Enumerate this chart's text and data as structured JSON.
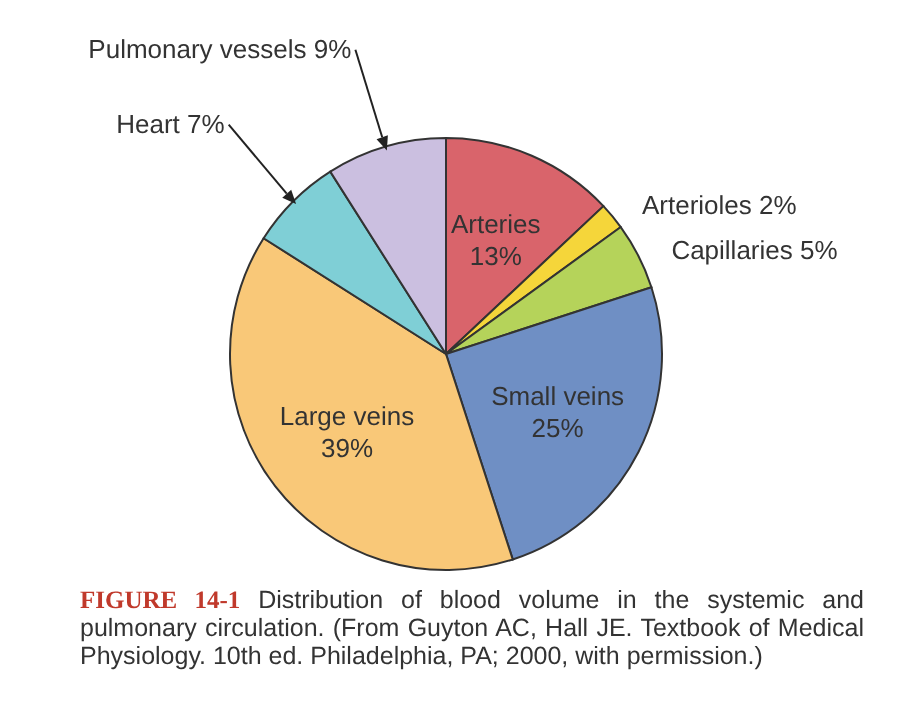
{
  "chart_data": {
    "type": "pie",
    "title": "FIGURE 14-1",
    "categories": [
      "Arteries",
      "Arterioles",
      "Capillaries",
      "Small veins",
      "Large veins",
      "Heart",
      "Pulmonary vessels"
    ],
    "values": [
      13,
      2,
      5,
      25,
      39,
      7,
      9
    ],
    "value_labels": [
      "13%",
      "2%",
      "5%",
      "25%",
      "39%",
      "7%",
      "9%"
    ],
    "colors": [
      "#d9646b",
      "#f5d63a",
      "#b5d35a",
      "#6f8fc4",
      "#f9c878",
      "#7fcfd6",
      "#cbbfe0"
    ],
    "annotations": [
      "Distribution of blood volume in the systemic and pulmonary circulation. (From Guyton AC, Hall JE. Textbook of Medical Physiology. 10th ed. Philadelphia, PA; 2000, with permission.)"
    ]
  }
}
